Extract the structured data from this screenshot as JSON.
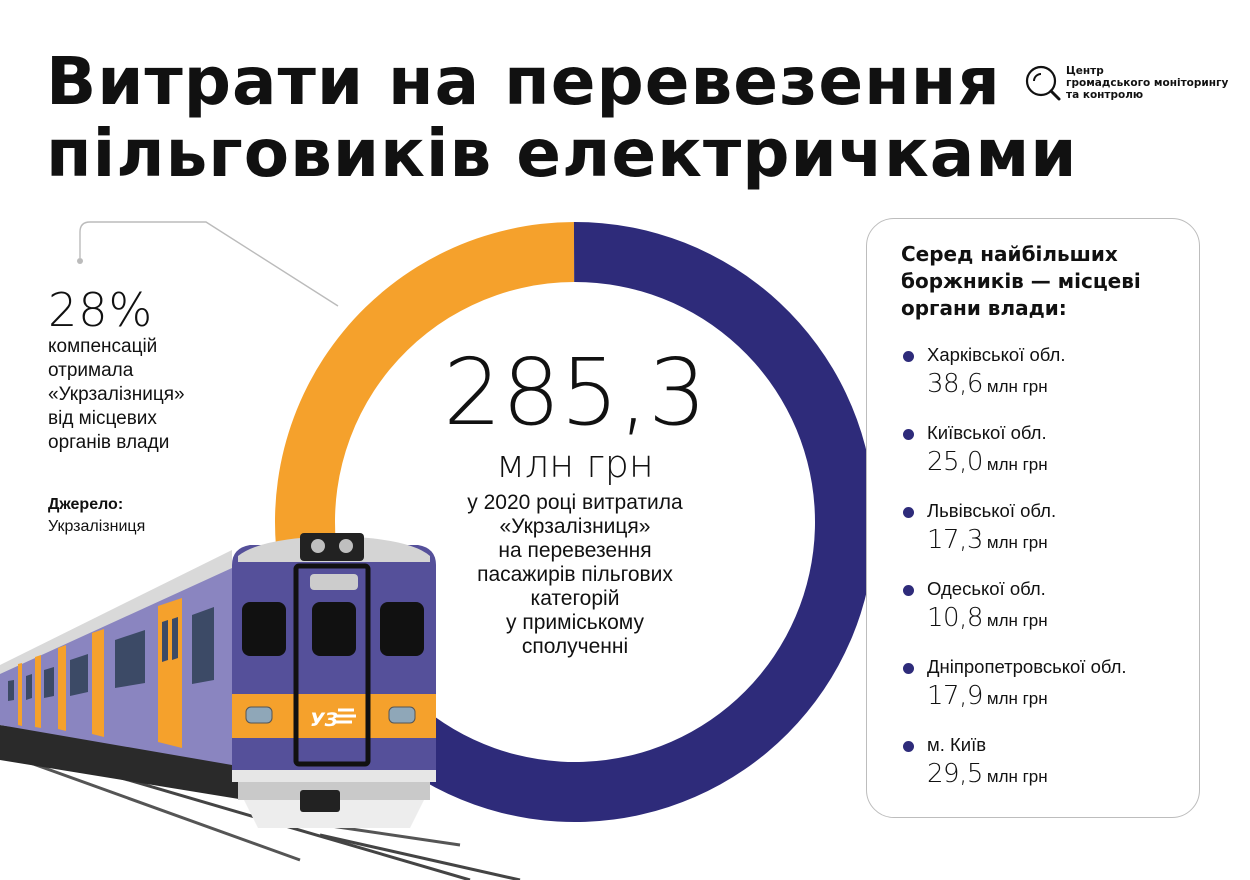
{
  "title_lines": [
    "Витрати на перевезення",
    "пільговиків електричками"
  ],
  "org": {
    "lines": [
      "Центр",
      "громадського моніторингу",
      "та контролю"
    ],
    "icon": "magnifier-logo-icon"
  },
  "callout": {
    "percent": "28%",
    "lines": [
      "компенсацій",
      "отримала",
      "«Укрзалізниця»",
      "від місцевих",
      "органів влади"
    ]
  },
  "source": {
    "label": "Джерело:",
    "value": "Укрзалізниця"
  },
  "center": {
    "number": "285,3",
    "unit": "млн грн",
    "desc_lines": [
      "у 2020 році витратила",
      "«Укрзалізниця»",
      "на перевезення",
      "пасажирів пільгових",
      "категорій",
      "у приміському",
      "сполученні"
    ]
  },
  "side": {
    "heading_lines": [
      "Серед найбільших",
      "боржників — місцеві",
      "органи влади:"
    ],
    "items": [
      {
        "region": "Харківської обл.",
        "value": "38,6",
        "unit": "млн грн"
      },
      {
        "region": "Київської обл.",
        "value": "25,0",
        "unit": "млн грн"
      },
      {
        "region": "Львівської обл.",
        "value": "17,3",
        "unit": "млн грн"
      },
      {
        "region": "Одеської обл.",
        "value": "10,8",
        "unit": "млн грн"
      },
      {
        "region": "Дніпропетровської обл.",
        "value": "17,9",
        "unit": "млн грн"
      },
      {
        "region": "м. Київ",
        "value": "29,5",
        "unit": "млн грн"
      }
    ]
  },
  "colors": {
    "navy": "#2e2b7a",
    "orange": "#f5a12c",
    "train_purple": "#55509a",
    "train_lavender": "#8a85c0",
    "train_orange": "#f5a12c",
    "dark": "#222222"
  },
  "chart_data": [
    {
      "type": "pie",
      "style": "donut",
      "slices": [
        {
          "label": "компенсацій від місцевих органів влади",
          "value": 28,
          "color": "#f5a12c"
        },
        {
          "label": "",
          "value": 72,
          "color": "#2e2b7a"
        }
      ],
      "total_label": "285,3 млн грн"
    },
    {
      "type": "bar",
      "categories": [
        "Харківської обл.",
        "Київської обл.",
        "Львівської обл.",
        "Одеської обл.",
        "Дніпропетровської обл.",
        "м. Київ"
      ],
      "values": [
        38.6,
        25.0,
        17.3,
        10.8,
        17.9,
        29.5
      ],
      "ylabel": "млн грн"
    }
  ]
}
